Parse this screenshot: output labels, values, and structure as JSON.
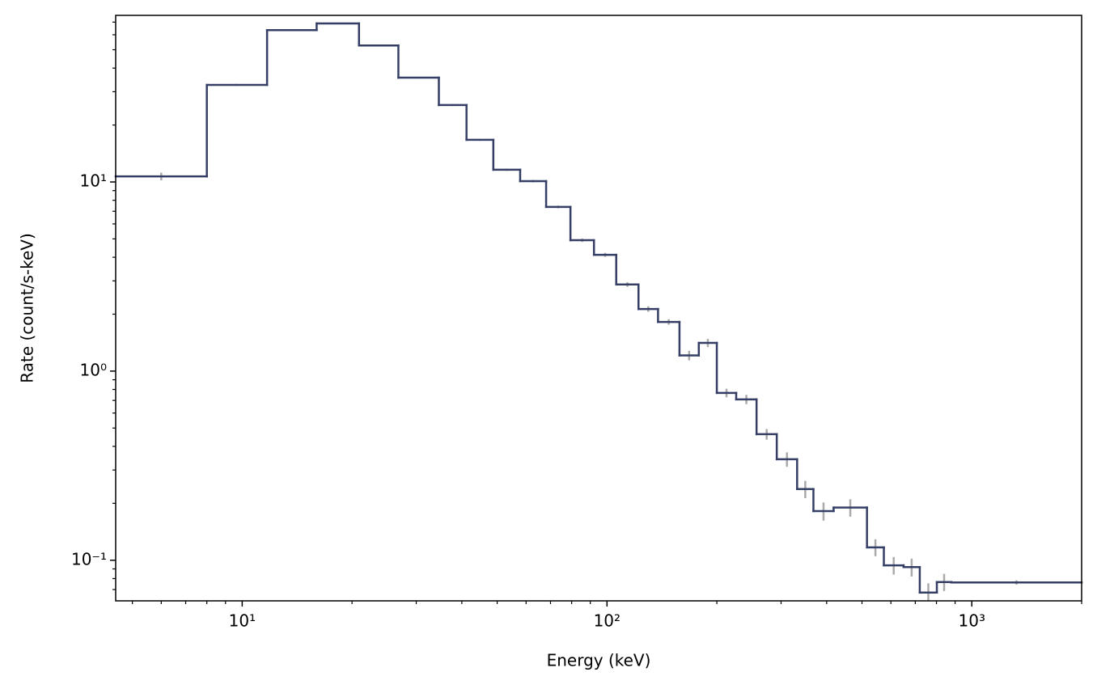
{
  "chart_data": {
    "type": "step",
    "xlabel": "Energy (keV)",
    "ylabel": "Rate (count/s-keV)",
    "xscale": "log",
    "yscale": "log",
    "xlim": [
      4.5,
      2000
    ],
    "ylim": [
      0.061,
      76
    ],
    "xticks": [
      {
        "value": 10,
        "label": "10¹"
      },
      {
        "value": 100,
        "label": "10²"
      },
      {
        "value": 1000,
        "label": "10³"
      }
    ],
    "yticks": [
      {
        "value": 0.1,
        "label": "10⁻¹"
      },
      {
        "value": 1,
        "label": "10⁰"
      },
      {
        "value": 10,
        "label": "10¹"
      }
    ],
    "x_minor_ticks": [
      5,
      6,
      7,
      8,
      9,
      20,
      30,
      40,
      50,
      60,
      70,
      80,
      90,
      200,
      300,
      400,
      500,
      600,
      700,
      800,
      900,
      2000
    ],
    "y_minor_ticks": [
      0.07,
      0.08,
      0.09,
      0.2,
      0.3,
      0.4,
      0.5,
      0.6,
      0.7,
      0.8,
      0.9,
      2,
      3,
      4,
      5,
      6,
      7,
      8,
      9,
      20,
      30,
      40,
      50,
      60,
      70
    ],
    "series": [
      {
        "color": "#353f66",
        "error_color": "#aaaaaa",
        "bins": [
          4.5,
          8,
          11.7,
          16,
          20.9,
          26.8,
          34.6,
          41.2,
          48.8,
          57.8,
          68.1,
          79.4,
          92.1,
          106,
          122,
          138,
          158,
          178.5,
          200,
          226,
          257,
          292,
          332,
          368,
          418,
          516,
          574,
          650,
          720,
          802,
          879,
          2000
        ],
        "values": [
          10.7,
          32.6,
          63.5,
          68.9,
          52.7,
          35.6,
          25.5,
          16.7,
          11.6,
          10.1,
          7.38,
          4.92,
          4.12,
          2.87,
          2.13,
          1.82,
          1.21,
          1.41,
          0.767,
          0.709,
          0.464,
          0.342,
          0.238,
          0.182,
          0.19,
          0.117,
          0.094,
          0.092,
          0.0675,
          0.0767,
          0.0763
        ],
        "errors": [
          0.5,
          0.4,
          0.6,
          0.6,
          0.5,
          0.4,
          0.3,
          0.2,
          0.15,
          0.15,
          0.12,
          0.1,
          0.1,
          0.08,
          0.07,
          0.06,
          0.07,
          0.07,
          0.04,
          0.04,
          0.03,
          0.03,
          0.025,
          0.02,
          0.02,
          0.012,
          0.01,
          0.01,
          0.008,
          0.008,
          0.002
        ]
      }
    ]
  }
}
